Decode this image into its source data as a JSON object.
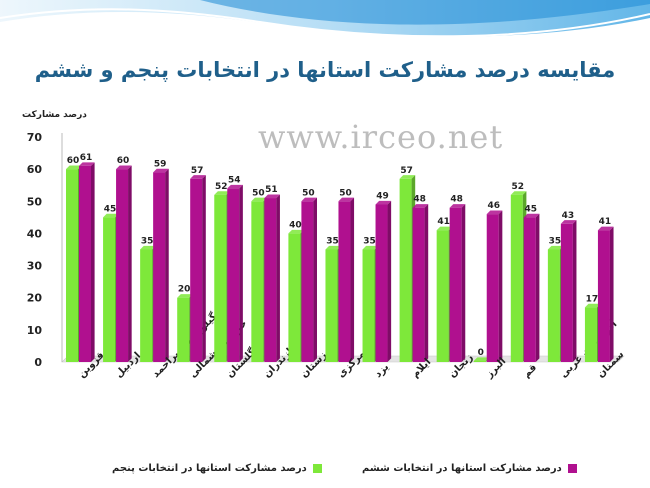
{
  "title": "مقایسه درصد مشارکت استانها در انتخابات پنجم و ششم",
  "watermark": "www.irceo.net",
  "colors": {
    "green": "#7ee83a",
    "magenta": "#b0108f",
    "title": "#1f5f8a",
    "band": "#2f9ee0"
  },
  "chart_data": {
    "type": "bar",
    "ylabel": "درصد مشارکت",
    "ylim": [
      0,
      70
    ],
    "yticks": [
      "0",
      "10",
      "20",
      "30",
      "40",
      "50",
      "60",
      "70"
    ],
    "categories": [
      "قزوین",
      "اردبیل",
      "کهگیلویه و بویراحمد",
      "خراسان شمالی",
      "گلستان",
      "مازندران",
      "خوزستان",
      "مرکزی",
      "یزد",
      "ایلام",
      "زنجان",
      "البرز",
      "قم",
      "آذربایجان غربی",
      "سمنان"
    ],
    "series": [
      {
        "name": "درصد مشارکت استانها در انتخابات پنجم",
        "values": [
          60,
          45,
          35,
          20,
          52,
          50,
          40,
          35,
          35,
          57,
          41,
          0,
          52,
          35,
          17
        ],
        "labels": [
          "60",
          "45",
          "35",
          "20",
          "52",
          "50",
          "40",
          "35",
          "35",
          "57",
          "41",
          "0",
          "52",
          "35",
          "17"
        ]
      },
      {
        "name": "درصد مشارکت استانها در انتخابات ششم",
        "values": [
          61,
          60,
          59,
          57,
          54,
          51,
          50,
          50,
          49,
          48,
          48,
          46,
          45,
          43,
          41
        ],
        "labels": [
          "61",
          "60",
          "59",
          "57",
          "54",
          "51",
          "50",
          "50",
          "49",
          "48",
          "48",
          "46",
          "45",
          "43",
          "41"
        ]
      }
    ],
    "legend_position": "bottom",
    "grid": false
  }
}
